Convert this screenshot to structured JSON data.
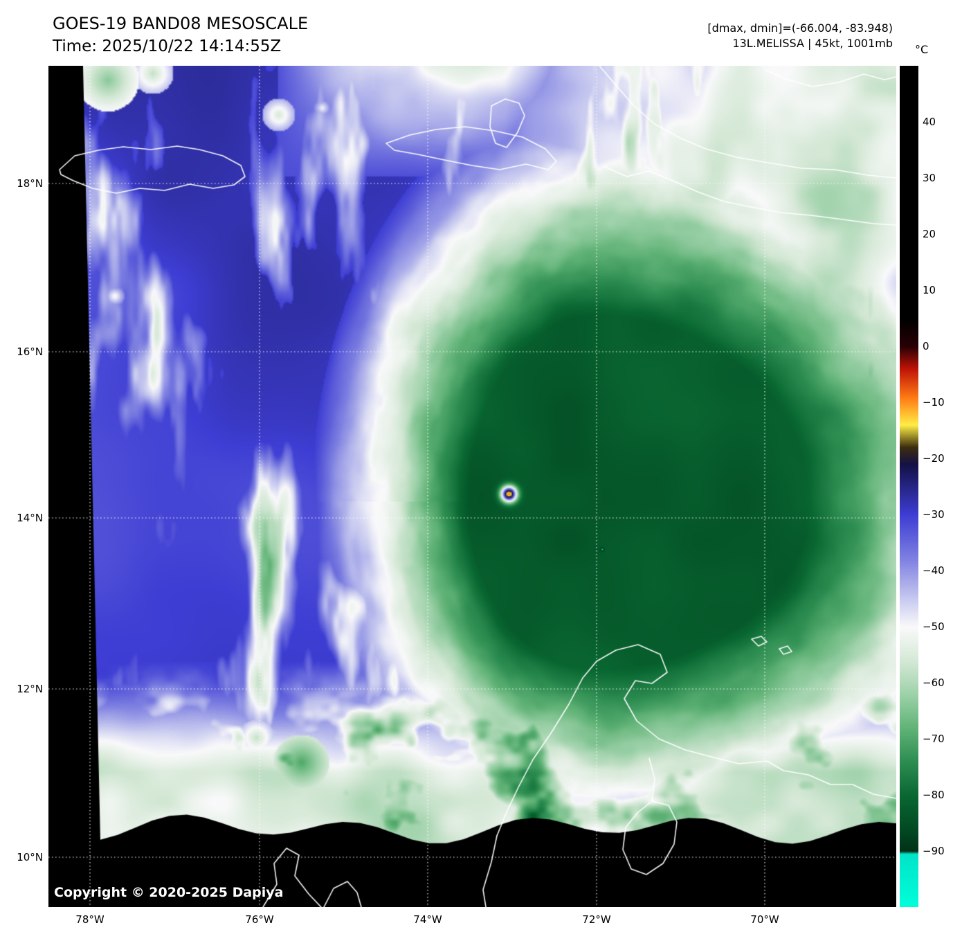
{
  "header": {
    "title": "GOES-19 BAND08 MESOSCALE",
    "time": "Time: 2025/10/22 14:14:55Z",
    "dmax_dmin": "[dmax, dmin]=(-66.004, -83.948)",
    "storm_info": "13L.MELISSA | 45kt, 1001mb"
  },
  "axes": {
    "lat_ticks": [
      "18°N",
      "16°N",
      "14°N",
      "12°N",
      "10°N"
    ],
    "lon_ticks": [
      "78°W",
      "76°W",
      "74°W",
      "72°W",
      "70°W"
    ]
  },
  "colorbar": {
    "unit": "°C",
    "ticks": [
      "40",
      "30",
      "20",
      "10",
      "0",
      "−10",
      "−20",
      "−30",
      "−40",
      "−50",
      "−60",
      "−70",
      "−80",
      "−90"
    ],
    "range_top_c": 50,
    "range_bottom_c": -100,
    "palette": [
      {
        "t": 5,
        "c": "#000000"
      },
      {
        "t": 0,
        "c": "#280005"
      },
      {
        "t": -4,
        "c": "#c01408"
      },
      {
        "t": -9,
        "c": "#ff7814"
      },
      {
        "t": -14,
        "c": "#ffee46"
      },
      {
        "t": -18,
        "c": "#3c2d0f"
      },
      {
        "t": -21,
        "c": "#141246"
      },
      {
        "t": -30,
        "c": "#3e3ed4"
      },
      {
        "t": -38,
        "c": "#8082e2"
      },
      {
        "t": -45,
        "c": "#c8caf0"
      },
      {
        "t": -50,
        "c": "#fafafb"
      },
      {
        "t": -56,
        "c": "#d6e9d7"
      },
      {
        "t": -62,
        "c": "#9ed2aa"
      },
      {
        "t": -68,
        "c": "#62b478"
      },
      {
        "t": -74,
        "c": "#2e8e52"
      },
      {
        "t": -80,
        "c": "#0a6832"
      },
      {
        "t": -86,
        "c": "#024b23"
      },
      {
        "t": -90,
        "c": "#013218"
      },
      {
        "t": -90.5,
        "c": "#00e4c8"
      },
      {
        "t": -100,
        "c": "#00ffdc"
      }
    ]
  },
  "copyright": "Copyright © 2020-2025 Dapiya"
}
